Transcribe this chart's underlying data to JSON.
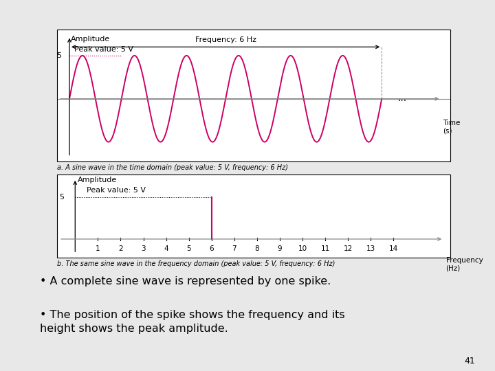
{
  "bg_color": "#e8e8e8",
  "panel_bg": "#ffffff",
  "sine_color": "#cc0066",
  "gray_axis": "#888888",
  "sine_freq": 6,
  "sine_amplitude": 5,
  "time_domain_label": "a. A sine wave in the time domain (peak value: 5 V, frequency: 6 Hz)",
  "freq_domain_label": "b. The same sine wave in the frequency domain (peak value: 5 V, frequency: 6 Hz)",
  "bullet1": "A complete sine wave is represented by one spike.",
  "bullet2": "The position of the spike shows the frequency and its\nheight shows the peak amplitude.",
  "page_num": "41",
  "freq_ticks": [
    1,
    2,
    3,
    4,
    5,
    6,
    7,
    8,
    9,
    10,
    11,
    12,
    13,
    14
  ]
}
